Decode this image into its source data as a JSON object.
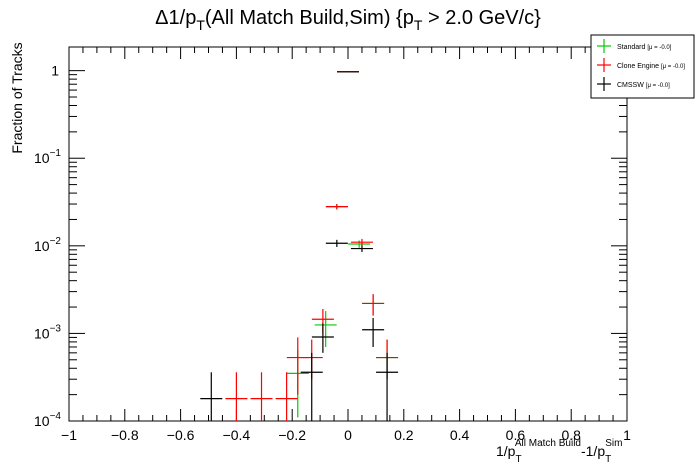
{
  "chart_data": {
    "type": "scatter",
    "title": {
      "main_pre": "Δ1/p",
      "main_sub": "T",
      "main_post": "(All Match Build,Sim) {p",
      "cut_sub": "T",
      "cut_post": " > 2.0 GeV/c}"
    },
    "ylabel": "Fraction of Tracks",
    "xlabel": {
      "pre": "1/p",
      "sub1": "T",
      "sup1": "All Match Build",
      "mid": "-1/p",
      "sub2": "T",
      "sup2": "Sim"
    },
    "xlim": [
      -1,
      1
    ],
    "ylim": [
      0.0001,
      2
    ],
    "yscale": "log",
    "x_ticks": [
      "−1",
      "−0.8",
      "−0.6",
      "−0.4",
      "−0.2",
      "0",
      "0.2",
      "0.4",
      "0.6",
      "0.8",
      "1"
    ],
    "y_ticks": [
      {
        "value": 1,
        "base": "1",
        "exp": ""
      },
      {
        "value": 0.1,
        "base": "10",
        "exp": "−1"
      },
      {
        "value": 0.01,
        "base": "10",
        "exp": "−2"
      },
      {
        "value": 0.001,
        "base": "10",
        "exp": "−3"
      },
      {
        "value": 0.0001,
        "base": "10",
        "exp": "−4"
      }
    ],
    "legend_position": "top-right",
    "series": [
      {
        "name": "Standard",
        "mu_label": "[μ = -0.0]",
        "color": "#00cc00",
        "points": [
          {
            "x": -0.18,
            "y": 0.00035,
            "lo": 0.00011,
            "hi": 0.00065
          },
          {
            "x": -0.08,
            "y": 0.00125,
            "lo": 0.0007,
            "hi": 0.0018
          },
          {
            "x": -0.04,
            "y": 0.028,
            "lo": 0.026,
            "hi": 0.03
          },
          {
            "x": 0.0,
            "y": 0.97,
            "lo": 0.96,
            "hi": 0.98
          },
          {
            "x": 0.04,
            "y": 0.0105,
            "lo": 0.0095,
            "hi": 0.0115
          },
          {
            "x": 0.09,
            "y": 0.0022,
            "lo": 0.0016,
            "hi": 0.0028
          },
          {
            "x": 0.14,
            "y": 0.00053,
            "lo": 0.0003,
            "hi": 0.00085
          }
        ]
      },
      {
        "name": "Clone Engine",
        "mu_label": "[μ = -0.0]",
        "color": "#ff0000",
        "points": [
          {
            "x": -0.4,
            "y": 0.00018,
            "lo": 0.0001,
            "hi": 0.00036
          },
          {
            "x": -0.31,
            "y": 0.00018,
            "lo": 0.0001,
            "hi": 0.00036
          },
          {
            "x": -0.22,
            "y": 0.00018,
            "lo": 0.0001,
            "hi": 0.00036
          },
          {
            "x": -0.18,
            "y": 0.00053,
            "lo": 0.0002,
            "hi": 0.0009
          },
          {
            "x": -0.13,
            "y": 0.00053,
            "lo": 0.0003,
            "hi": 0.00085
          },
          {
            "x": -0.09,
            "y": 0.00145,
            "lo": 0.001,
            "hi": 0.0019
          },
          {
            "x": -0.04,
            "y": 0.028,
            "lo": 0.026,
            "hi": 0.03
          },
          {
            "x": 0.0,
            "y": 0.97,
            "lo": 0.96,
            "hi": 0.98
          },
          {
            "x": 0.05,
            "y": 0.011,
            "lo": 0.01,
            "hi": 0.012
          },
          {
            "x": 0.09,
            "y": 0.0022,
            "lo": 0.0016,
            "hi": 0.0028
          },
          {
            "x": 0.14,
            "y": 0.00053,
            "lo": 0.0003,
            "hi": 0.00085
          }
        ]
      },
      {
        "name": "CMSSW",
        "mu_label": "[μ = -0.0]",
        "color": "#000000",
        "points": [
          {
            "x": -0.49,
            "y": 0.00018,
            "lo": 0.0001,
            "hi": 0.00036
          },
          {
            "x": -0.13,
            "y": 0.00036,
            "lo": 0.0001,
            "hi": 0.0006
          },
          {
            "x": -0.09,
            "y": 0.00091,
            "lo": 0.0006,
            "hi": 0.0013
          },
          {
            "x": -0.04,
            "y": 0.0107,
            "lo": 0.0097,
            "hi": 0.0117
          },
          {
            "x": 0.0,
            "y": 0.97,
            "lo": 0.96,
            "hi": 0.98
          },
          {
            "x": 0.05,
            "y": 0.0093,
            "lo": 0.0085,
            "hi": 0.0101
          },
          {
            "x": 0.09,
            "y": 0.0011,
            "lo": 0.0007,
            "hi": 0.0015
          },
          {
            "x": 0.14,
            "y": 0.00036,
            "lo": 0.0001,
            "hi": 0.0006
          }
        ]
      }
    ]
  }
}
